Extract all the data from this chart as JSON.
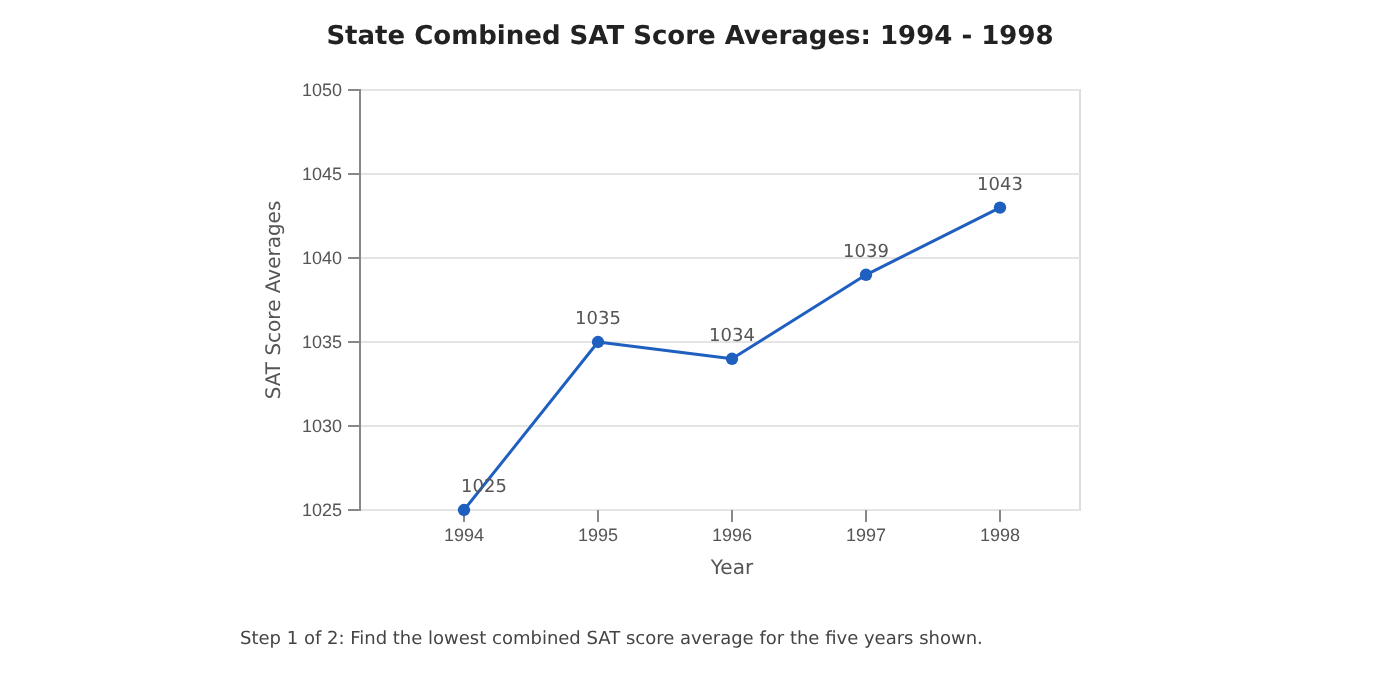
{
  "chart_data": {
    "type": "line",
    "title": "State Combined SAT Score Averages: 1994 - 1998",
    "xlabel": "Year",
    "ylabel": "SAT Score Averages",
    "categories": [
      "1994",
      "1995",
      "1996",
      "1997",
      "1998"
    ],
    "series": [
      {
        "color": "#1f5fbf",
        "values": [
          1025,
          1035,
          1034,
          1039,
          1043
        ]
      }
    ],
    "ylim": [
      1025,
      1050
    ],
    "yticks": [
      1025,
      1030,
      1035,
      1040,
      1045,
      1050
    ],
    "grid": "y",
    "marker": "circle",
    "line_style": "solid",
    "data_labels": true,
    "annotations": [
      "Step 1 of 2: Find the lowest combined SAT score average for the five years shown."
    ]
  }
}
